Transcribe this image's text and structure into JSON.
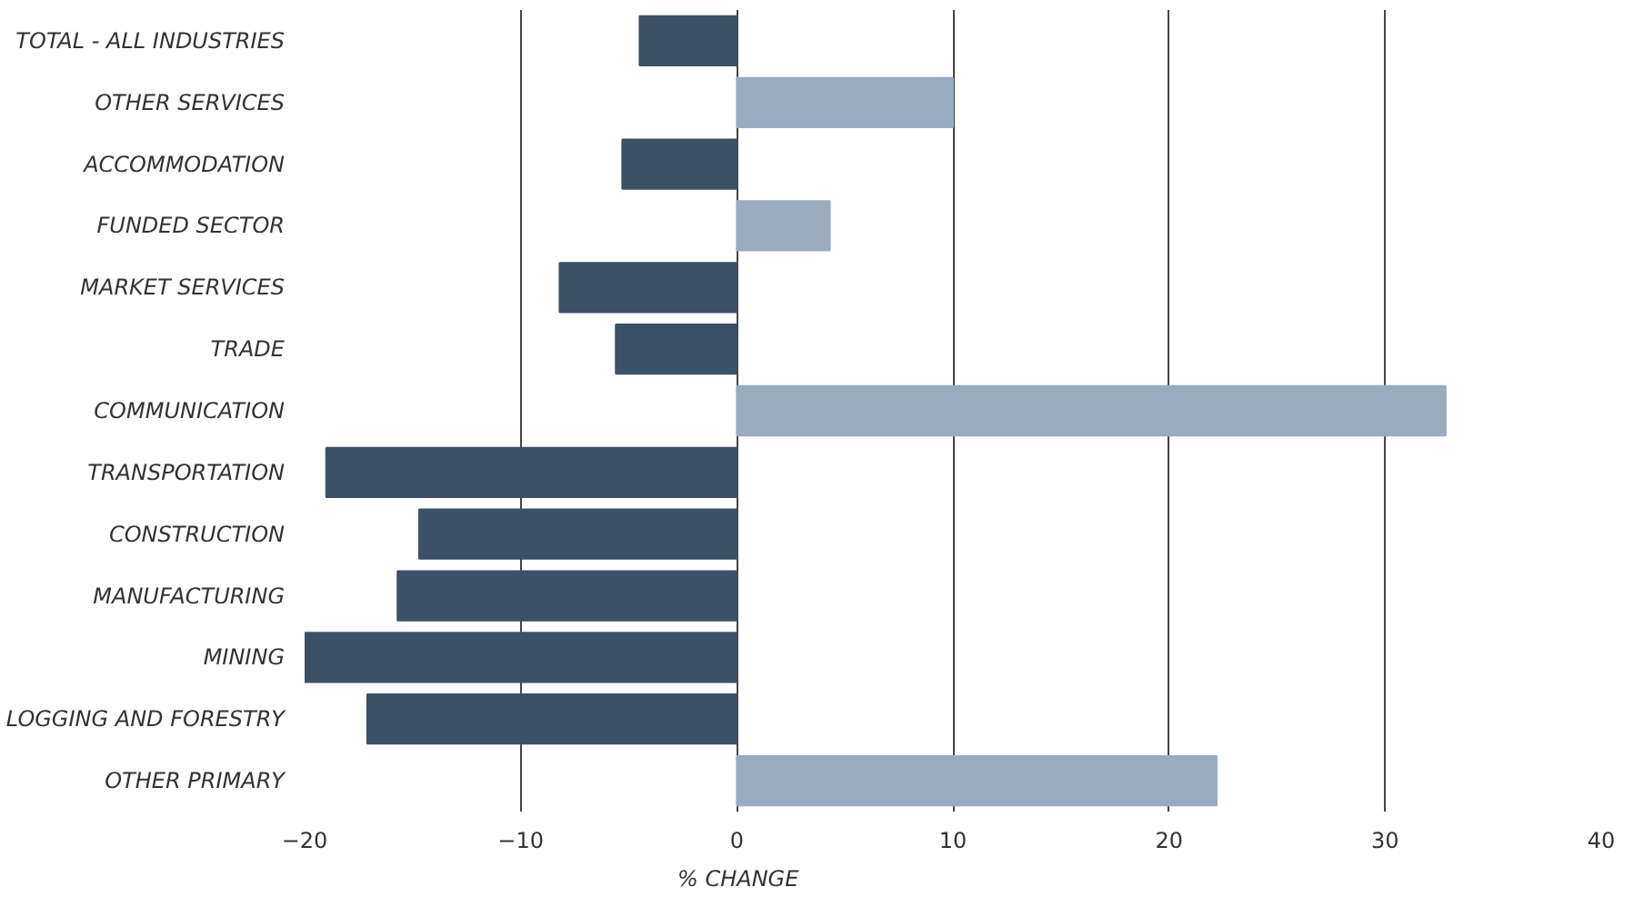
{
  "chart_data": {
    "type": "bar",
    "orientation": "horizontal",
    "xlabel": "% CHANGE",
    "categories": [
      "TOTAL - ALL INDUSTRIES",
      "OTHER SERVICES",
      "ACCOMMODATION",
      "FUNDED SECTOR",
      "MARKET SERVICES",
      "TRADE",
      "COMMUNICATION",
      "TRANSPORTATION",
      "CONSTRUCTION",
      "MANUFACTURING",
      "MINING",
      "LOGGING AND FORESTRY",
      "OTHER PRIMARY"
    ],
    "values": [
      -4.5,
      10,
      -5.3,
      4.3,
      -8.2,
      -5.6,
      32.8,
      -19,
      -14.7,
      -15.7,
      -20,
      -17.1,
      22.2
    ],
    "colors": [
      "#3d5166",
      "#9aabc0",
      "#3d5166",
      "#9aabc0",
      "#3d5166",
      "#3d5166",
      "#9aabc0",
      "#3d5166",
      "#3d5166",
      "#3d5166",
      "#3d5166",
      "#3d5166",
      "#9aabc0"
    ],
    "xlim": [
      -20,
      40
    ],
    "xticks": [
      -20,
      -10,
      0,
      10,
      20,
      30,
      40
    ],
    "grid": "x"
  }
}
